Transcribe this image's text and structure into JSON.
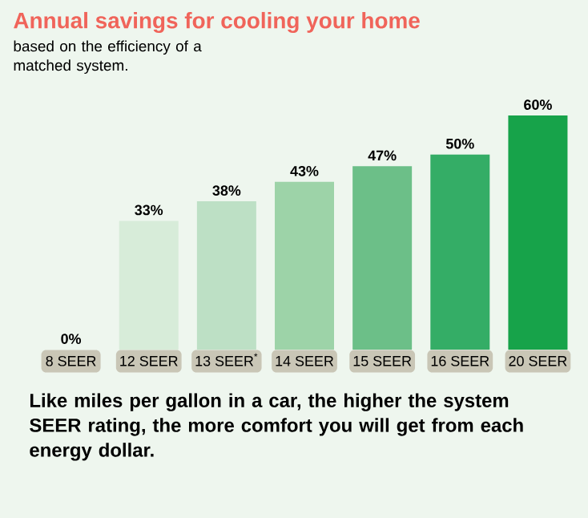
{
  "chart_data": {
    "type": "bar",
    "title": "Annual savings for cooling your home",
    "subtitle": "based on the efficiency of a matched system.",
    "categories": [
      "8 SEER",
      "12 SEER",
      "13 SEER$^{*}$",
      "14 SEER",
      "15 SEER",
      "16 SEER",
      "20 SEER"
    ],
    "values": [
      0,
      33,
      38,
      43,
      47,
      50,
      60
    ],
    "colors": [
      "#d7ecd9",
      "#d7ecd9",
      "#bde0c5",
      "#9dd3a8",
      "#6cbf88",
      "#34ad66",
      "#17a34a"
    ],
    "value_labels": [
      "0%",
      "33%",
      "38%",
      "43%",
      "47%",
      "50%",
      "60%"
    ],
    "tick_labels": "x",
    "annotations": [
      "Like miles per gallon in a car, the higher the system SEER rating, the more comfort you will get from each energy dollar."
    ]
  }
}
